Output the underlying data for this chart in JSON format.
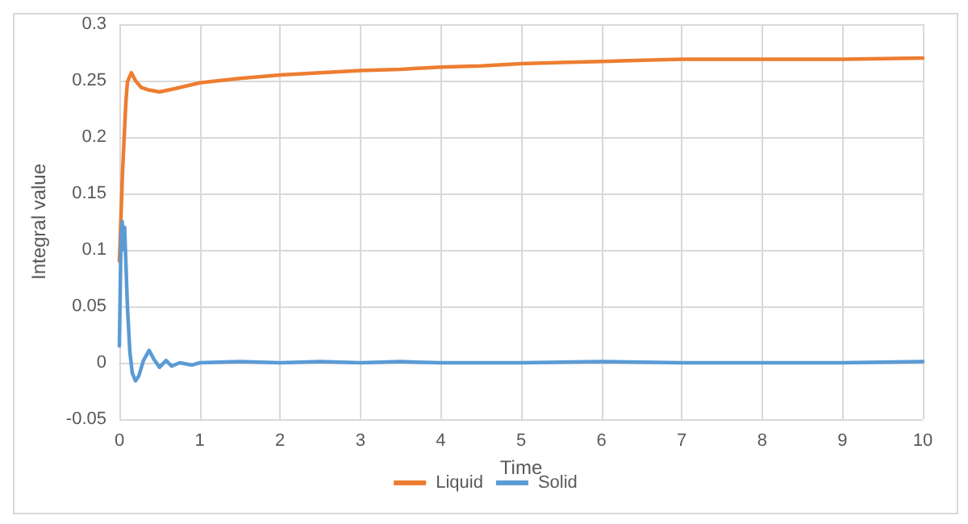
{
  "chart_data": {
    "type": "line",
    "xlabel": "Time",
    "ylabel": "Integral value",
    "xlim": [
      0,
      10
    ],
    "xticks": [
      0,
      1,
      2,
      3,
      4,
      5,
      6,
      7,
      8,
      9,
      10
    ],
    "ylim": [
      -0.05,
      0.3
    ],
    "yticks": [
      -0.05,
      0,
      0.05,
      0.1,
      0.15,
      0.2,
      0.25,
      0.3
    ],
    "grid": true,
    "legend": "bottom",
    "marker": "none",
    "line_style": "solid",
    "series": [
      {
        "name": "Liquid",
        "color": "#ed7d31",
        "x": [
          0,
          0.02,
          0.04,
          0.06,
          0.08,
          0.1,
          0.15,
          0.2,
          0.27,
          0.35,
          0.5,
          0.7,
          1,
          1.5,
          2,
          2.5,
          3,
          3.5,
          4,
          4.5,
          5,
          5.5,
          6,
          6.5,
          7,
          8,
          9,
          10
        ],
        "values": [
          0.09,
          0.13,
          0.17,
          0.2,
          0.23,
          0.249,
          0.257,
          0.25,
          0.244,
          0.242,
          0.24,
          0.243,
          0.248,
          0.252,
          0.255,
          0.257,
          0.259,
          0.26,
          0.262,
          0.263,
          0.265,
          0.266,
          0.267,
          0.268,
          0.269,
          0.269,
          0.269,
          0.27
        ]
      },
      {
        "name": "Solid",
        "color": "#5b9bd5",
        "x": [
          0,
          0.02,
          0.035,
          0.05,
          0.065,
          0.08,
          0.1,
          0.13,
          0.16,
          0.2,
          0.24,
          0.3,
          0.37,
          0.43,
          0.5,
          0.58,
          0.65,
          0.75,
          0.9,
          1,
          1.5,
          2,
          2.5,
          3,
          3.5,
          4,
          5,
          6,
          7,
          8,
          9,
          10
        ],
        "values": [
          0.015,
          0.11,
          0.125,
          0.1,
          0.12,
          0.09,
          0.05,
          0.01,
          -0.009,
          -0.016,
          -0.012,
          0.002,
          0.011,
          0.003,
          -0.004,
          0.002,
          -0.003,
          0,
          -0.002,
          0,
          0.001,
          0,
          0.001,
          0,
          0.001,
          0,
          0,
          0.001,
          0,
          0,
          0,
          0.001
        ]
      }
    ]
  }
}
